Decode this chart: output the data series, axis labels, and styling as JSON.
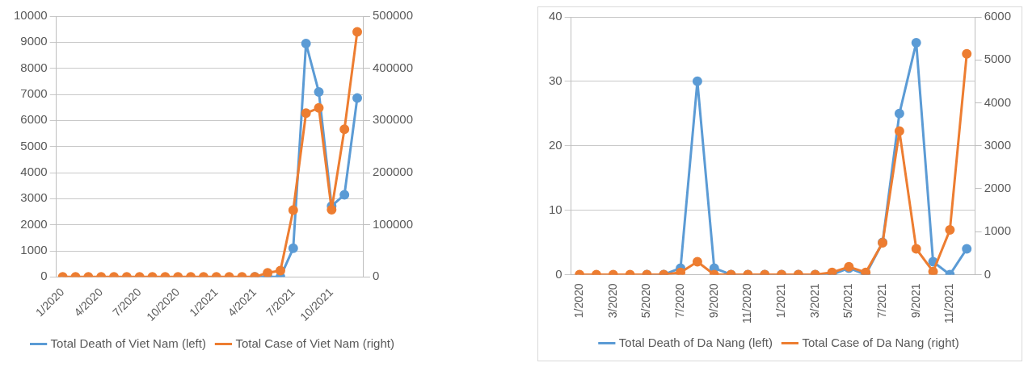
{
  "chart_data": [
    {
      "type": "line",
      "categories": [
        "1/2020",
        null,
        null,
        "4/2020",
        null,
        null,
        "7/2020",
        null,
        null,
        "10/2020",
        null,
        null,
        "1/2021",
        null,
        null,
        "4/2021",
        null,
        null,
        "7/2021",
        null,
        null,
        "10/2021",
        null,
        null
      ],
      "series": [
        {
          "name": "Total Death of Viet Nam (left)",
          "color": "#5b9bd5",
          "values": [
            null,
            null,
            null,
            null,
            null,
            null,
            null,
            null,
            null,
            null,
            null,
            null,
            null,
            null,
            null,
            0,
            0,
            0,
            1100,
            8950,
            7090,
            2720,
            3150,
            6860
          ]
        },
        {
          "name": "Total Case of Viet Nam (right)",
          "color": "#ed7d31",
          "axis": "y2",
          "values": [
            0,
            0,
            0,
            0,
            0,
            0,
            0,
            0,
            0,
            0,
            0,
            0,
            0,
            0,
            0,
            0,
            8000,
            12000,
            128000,
            314000,
            324000,
            129000,
            283000,
            470000
          ]
        }
      ],
      "ylim": [
        0,
        10000
      ],
      "yticks": [
        0,
        1000,
        2000,
        3000,
        4000,
        5000,
        6000,
        7000,
        8000,
        9000,
        10000
      ],
      "y2lim": [
        0,
        500000
      ],
      "y2ticks": [
        0,
        100000,
        200000,
        300000,
        400000,
        500000
      ],
      "grid": "y",
      "legend": "bottom",
      "marker": "circle",
      "line_style": "solid"
    },
    {
      "type": "line",
      "categories": [
        "1/2020",
        null,
        "3/2020",
        null,
        "5/2020",
        null,
        "7/2020",
        null,
        "9/2020",
        null,
        "11/2020",
        null,
        "1/2021",
        null,
        "3/2021",
        null,
        "5/2021",
        null,
        "7/2021",
        null,
        "9/2021",
        null,
        "11/2021",
        null
      ],
      "series": [
        {
          "name": "Total Death of Da Nang (left)",
          "color": "#5b9bd5",
          "values": [
            null,
            null,
            null,
            null,
            0,
            0,
            1,
            30,
            1,
            0,
            0,
            0,
            0,
            0,
            0,
            0,
            1,
            0,
            5,
            25,
            36,
            2,
            0,
            4
          ]
        },
        {
          "name": "Total Case of Da Nang (right)",
          "color": "#ed7d31",
          "axis": "y2",
          "values": [
            0,
            0,
            0,
            0,
            0,
            0,
            50,
            300,
            0,
            0,
            0,
            0,
            0,
            0,
            0,
            50,
            180,
            50,
            740,
            3340,
            600,
            70,
            1040,
            5140
          ]
        }
      ],
      "ylim": [
        0,
        40
      ],
      "yticks": [
        0,
        10,
        20,
        30,
        40
      ],
      "y2lim": [
        0,
        6000
      ],
      "y2ticks": [
        0,
        1000,
        2000,
        3000,
        4000,
        5000,
        6000
      ],
      "grid": "y",
      "legend": "bottom",
      "marker": "circle",
      "line_style": "solid"
    }
  ]
}
